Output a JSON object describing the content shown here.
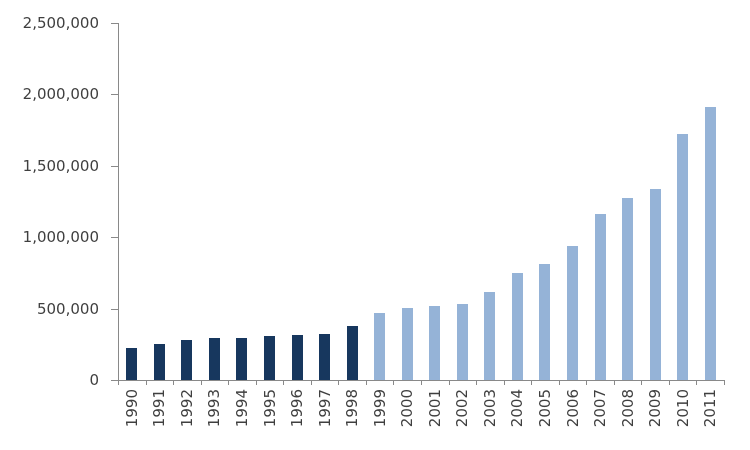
{
  "chart_data": {
    "type": "bar",
    "title": "",
    "xlabel": "",
    "ylabel": "",
    "categories": [
      "1990",
      "1991",
      "1992",
      "1993",
      "1994",
      "1995",
      "1996",
      "1997",
      "1998",
      "1999",
      "2000",
      "2001",
      "2002",
      "2003",
      "2004",
      "2005",
      "2006",
      "2007",
      "2008",
      "2009",
      "2010",
      "2011"
    ],
    "values": [
      225000,
      255000,
      280000,
      295000,
      295000,
      305000,
      315000,
      325000,
      375000,
      470000,
      505000,
      520000,
      530000,
      615000,
      750000,
      815000,
      935000,
      1160000,
      1275000,
      1335000,
      1725000,
      1910000
    ],
    "bar_color_group": [
      "dark",
      "dark",
      "dark",
      "dark",
      "dark",
      "dark",
      "dark",
      "dark",
      "dark",
      "light",
      "light",
      "light",
      "light",
      "light",
      "light",
      "light",
      "light",
      "light",
      "light",
      "light",
      "light",
      "light"
    ],
    "ylim": [
      0,
      2500000
    ],
    "yticks": [
      0,
      500000,
      1000000,
      1500000,
      2000000,
      2500000
    ],
    "ytick_labels": [
      "0",
      "500,000",
      "1,000,000",
      "1,500,000",
      "2,000,000",
      "2,500,000"
    ],
    "grid": false,
    "legend": null,
    "x_label_rotation_degrees": -90
  },
  "colors": {
    "dark_bar": "#17375E",
    "light_bar": "#95B3D7",
    "axis": "#898989",
    "text": "#3F3F3F",
    "background": "#FFFFFF"
  }
}
